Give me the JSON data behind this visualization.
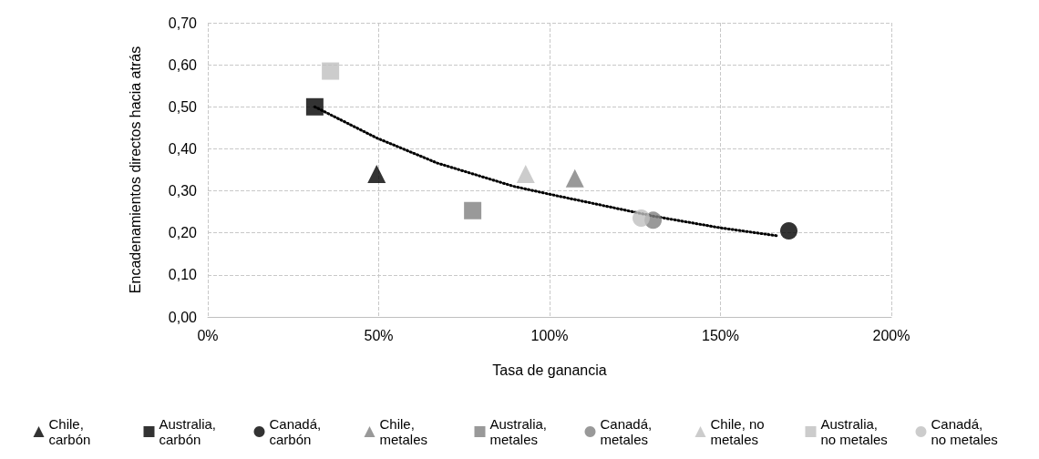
{
  "chart_data": {
    "type": "scatter",
    "xlabel": "Tasa de ganancia",
    "ylabel": "Encadenamientos directos hacia atrás",
    "xlim": [
      0,
      200
    ],
    "xticks": [
      {
        "value": 0,
        "label": "0%"
      },
      {
        "value": 50,
        "label": "50%"
      },
      {
        "value": 100,
        "label": "100%"
      },
      {
        "value": 150,
        "label": "150%"
      },
      {
        "value": 200,
        "label": "200%"
      }
    ],
    "ylim": [
      0,
      0.7
    ],
    "yticks": [
      {
        "value": 0,
        "label": "0,00"
      },
      {
        "value": 0.1,
        "label": "0,10"
      },
      {
        "value": 0.2,
        "label": "0,20"
      },
      {
        "value": 0.3,
        "label": "0,30"
      },
      {
        "value": 0.4,
        "label": "0,40"
      },
      {
        "value": 0.5,
        "label": "0,50"
      },
      {
        "value": 0.6,
        "label": "0,60"
      },
      {
        "value": 0.7,
        "label": "0,70"
      }
    ],
    "grid": true,
    "legend": "bottom",
    "series": [
      {
        "name": "Chile, carbón",
        "color": "#000000",
        "marker": "triangle",
        "x": [
          49.4
        ],
        "values": [
          0.34
        ]
      },
      {
        "name": "Australia, carbón",
        "color": "#000000",
        "marker": "square",
        "x": [
          31.3
        ],
        "values": [
          0.5
        ]
      },
      {
        "name": "Canadá, carbón",
        "color": "#000000",
        "marker": "circle",
        "x": [
          170
        ],
        "values": [
          0.205
        ]
      },
      {
        "name": "Chile, metales",
        "color": "#808080",
        "marker": "triangle",
        "x": [
          107.4
        ],
        "values": [
          0.33
        ]
      },
      {
        "name": "Australia, metales",
        "color": "#808080",
        "marker": "square",
        "x": [
          77.5
        ],
        "values": [
          0.253
        ]
      },
      {
        "name": "Canadá, metales",
        "color": "#808080",
        "marker": "circle",
        "x": [
          130.3
        ],
        "values": [
          0.23
        ]
      },
      {
        "name": "Chile, no metales",
        "color": "#bfbfbf",
        "marker": "triangle",
        "x": [
          93
        ],
        "values": [
          0.34
        ]
      },
      {
        "name": "Australia, no metales",
        "color": "#bfbfbf",
        "marker": "square",
        "x": [
          35.9
        ],
        "values": [
          0.585
        ]
      },
      {
        "name": "Canadá, no metales",
        "color": "#bfbfbf",
        "marker": "circle",
        "x": [
          126.8
        ],
        "values": [
          0.235
        ]
      },
      {
        "type": "line",
        "color": "#000000",
        "marker": "none",
        "line_style": "dotted",
        "x": [
          31.3,
          49.4,
          67.2,
          89.4,
          100,
          130.3,
          150,
          166.7
        ],
        "values": [
          0.5,
          0.426,
          0.366,
          0.311,
          0.292,
          0.24,
          0.212,
          0.193
        ]
      }
    ]
  }
}
